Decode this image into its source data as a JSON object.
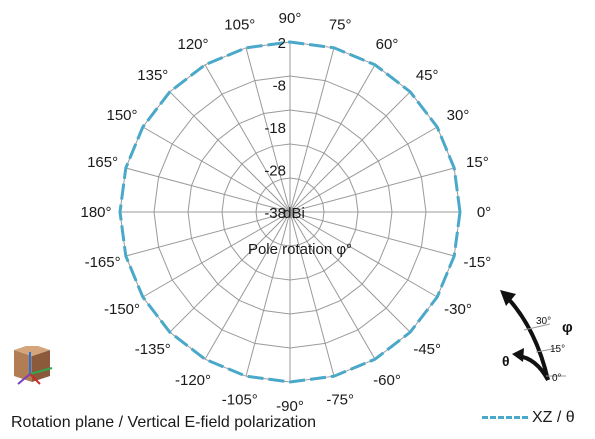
{
  "chart_data": {
    "type": "polar-line",
    "title": "",
    "caption": "Rotation plane / Vertical E-field polarization",
    "center_label": "dBi",
    "axis_label": "Pole rotation φ°",
    "angle_ticks": [
      "90°",
      "75°",
      "60°",
      "45°",
      "30°",
      "15°",
      "0°",
      "-15°",
      "-30°",
      "-45°",
      "-60°",
      "-75°",
      "-90°",
      "-105°",
      "-120°",
      "-135°",
      "-150°",
      "-165°",
      "180°",
      "165°",
      "150°",
      "135°",
      "120°",
      "105°"
    ],
    "angle_values": [
      90,
      75,
      60,
      45,
      30,
      15,
      0,
      -15,
      -30,
      -45,
      -60,
      -75,
      -90,
      -105,
      -120,
      -135,
      -150,
      -165,
      180,
      165,
      150,
      135,
      120,
      105
    ],
    "radial_ticks": [
      "2",
      "-8",
      "-18",
      "-28",
      "-38"
    ],
    "radial_values": [
      2,
      -8,
      -18,
      -28,
      -38
    ],
    "rlim": [
      -38,
      2
    ],
    "grid": true,
    "legend_position": "bottom-right",
    "series": [
      {
        "name": "XZ / θ",
        "color": "#4aa8c9",
        "style": "dashed",
        "theta": [
          0,
          15,
          30,
          45,
          60,
          75,
          90,
          105,
          120,
          135,
          150,
          165,
          180,
          -165,
          -150,
          -135,
          -120,
          -105,
          -90,
          -75,
          -60,
          -45,
          -30,
          -15
        ],
        "values": [
          2,
          2,
          2,
          2,
          2,
          2,
          2,
          2,
          2,
          2,
          2,
          2,
          2,
          2,
          2,
          2,
          2,
          2,
          2,
          2,
          2,
          2,
          2,
          2
        ]
      }
    ]
  },
  "icons": {
    "axes": "axes-orientation-icon",
    "rotation": "rotation-angle-icon",
    "rotation_labels": {
      "phi": "φ",
      "theta": "θ",
      "a30": "30°",
      "a15": "15°",
      "a0": "0°"
    }
  }
}
